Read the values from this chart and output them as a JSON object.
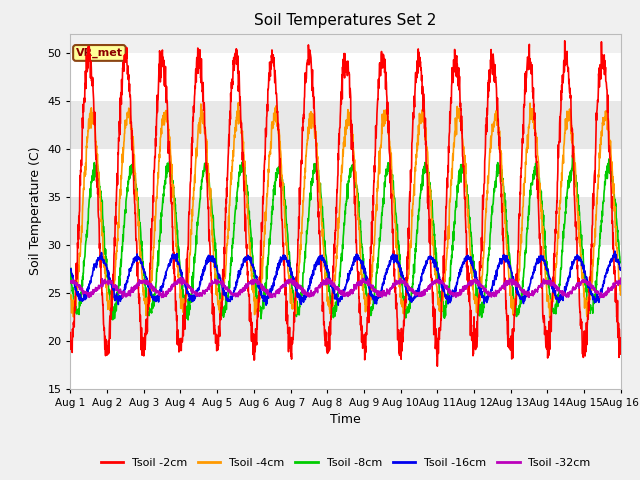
{
  "title": "Soil Temperatures Set 2",
  "xlabel": "Time",
  "ylabel": "Soil Temperature (C)",
  "ylim": [
    15,
    52
  ],
  "yticks": [
    15,
    20,
    25,
    30,
    35,
    40,
    45,
    50
  ],
  "annotation_text": "VR_met",
  "colors": {
    "Tsoil -2cm": "#ff0000",
    "Tsoil -4cm": "#ff9900",
    "Tsoil -8cm": "#00cc00",
    "Tsoil -16cm": "#0000ee",
    "Tsoil -32cm": "#bb00bb"
  },
  "legend_labels": [
    "Tsoil -2cm",
    "Tsoil -4cm",
    "Tsoil -8cm",
    "Tsoil -16cm",
    "Tsoil -32cm"
  ],
  "fig_bg_color": "#f0f0f0",
  "plot_bg": "#f0f0f0",
  "band_colors": [
    "#ffffff",
    "#e8e8e8"
  ],
  "grid_color": "#ffffff",
  "num_days": 15,
  "points_per_day": 144,
  "series_params": [
    {
      "amp": 15.0,
      "mean": 34.5,
      "phase": 0.0,
      "noise": 0.8
    },
    {
      "amp": 10.0,
      "mean": 33.5,
      "phase": 0.08,
      "noise": 0.5
    },
    {
      "amp": 7.5,
      "mean": 30.5,
      "phase": 0.18,
      "noise": 0.4
    },
    {
      "amp": 2.2,
      "mean": 26.5,
      "phase": 0.32,
      "noise": 0.2
    },
    {
      "amp": 0.7,
      "mean": 25.5,
      "phase": 0.5,
      "noise": 0.15
    }
  ]
}
